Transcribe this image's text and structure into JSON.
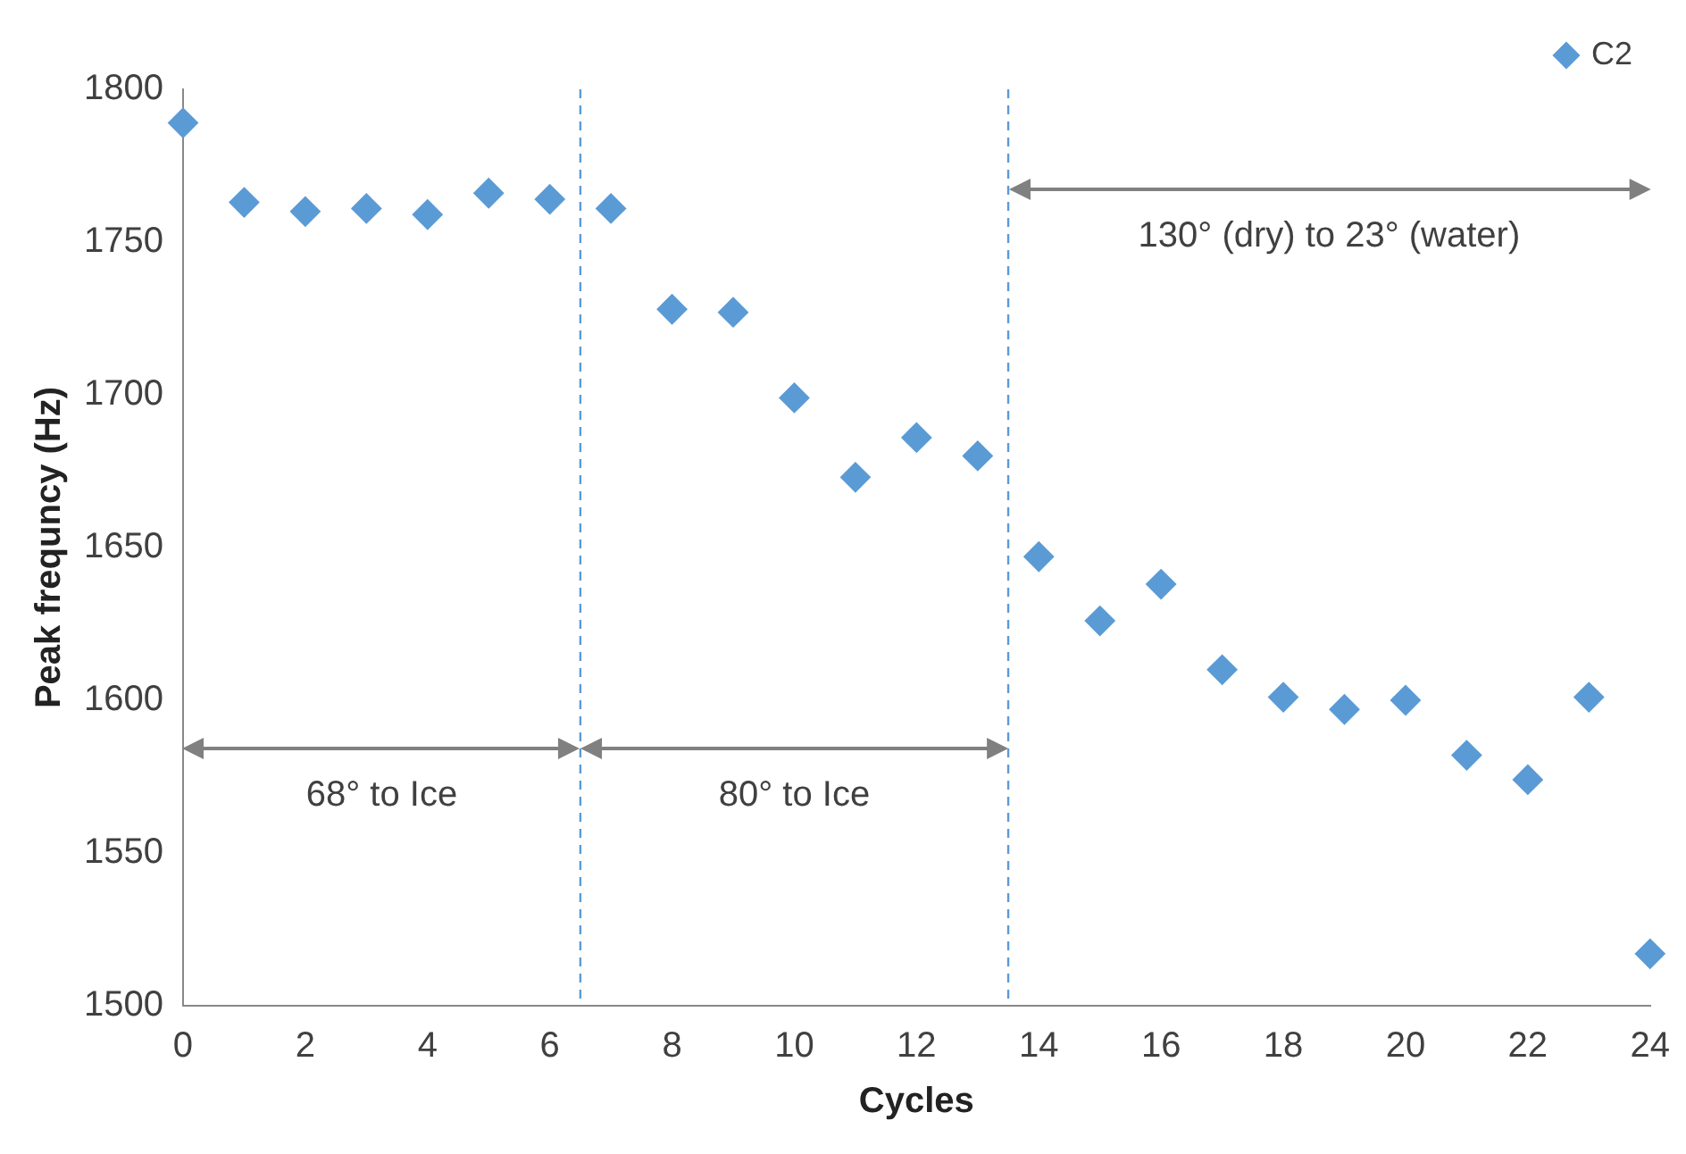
{
  "chart_data": {
    "type": "scatter",
    "xlabel": "Cycles",
    "ylabel": "Peak frequncy (Hz)",
    "x": [
      0,
      1,
      2,
      3,
      4,
      5,
      6,
      7,
      8,
      9,
      10,
      11,
      12,
      13,
      14,
      15,
      16,
      17,
      18,
      19,
      20,
      21,
      22,
      23,
      24
    ],
    "series": [
      {
        "name": "C2",
        "color": "#5b9bd5",
        "values": [
          1789,
          1763,
          1760,
          1761,
          1759,
          1766,
          1764,
          1761,
          1728,
          1727,
          1699,
          1673,
          1686,
          1680,
          1647,
          1626,
          1638,
          1610,
          1601,
          1597,
          1600,
          1582,
          1574,
          1601,
          1517
        ]
      }
    ],
    "marker": "diamond",
    "xlim": [
      0,
      24
    ],
    "xticks": [
      0,
      2,
      4,
      6,
      8,
      10,
      12,
      14,
      16,
      18,
      20,
      22,
      24
    ],
    "ylim": [
      1500,
      1800
    ],
    "yticks": [
      1500,
      1550,
      1600,
      1650,
      1700,
      1750,
      1800
    ],
    "grid": false,
    "legend": "top right",
    "ref_lines": [
      {
        "axis": "x",
        "value": 6.5,
        "color": "#5b9bd5",
        "line_style": "dashed"
      },
      {
        "axis": "x",
        "value": 13.5,
        "color": "#5b9bd5",
        "line_style": "dashed"
      }
    ],
    "annotations": [
      "68° to Ice",
      "80° to Ice",
      "130° (dry) to 23° (water)"
    ]
  }
}
